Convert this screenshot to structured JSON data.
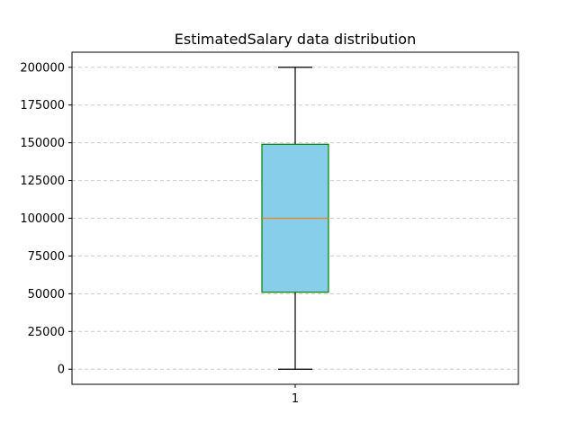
{
  "chart_data": {
    "type": "box",
    "title": "EstimatedSalary data distribution",
    "xlabel": "",
    "ylabel": "",
    "categories": [
      "1"
    ],
    "box": {
      "whisker_low": 0,
      "q1": 51000,
      "median": 100000,
      "q3": 149000,
      "whisker_high": 200000
    },
    "ylim": [
      -10000,
      210000
    ],
    "yticks": [
      0,
      25000,
      50000,
      75000,
      100000,
      125000,
      150000,
      175000,
      200000
    ],
    "ytick_labels": [
      "0",
      "25000",
      "50000",
      "75000",
      "100000",
      "125000",
      "150000",
      "175000",
      "200000"
    ],
    "grid": "horizontal dashed",
    "colors": {
      "box_fill": "#87ceeb",
      "box_edge": "#008000",
      "median": "#ff7f0e",
      "whisker": "#000000",
      "grid": "#cccccc"
    }
  }
}
